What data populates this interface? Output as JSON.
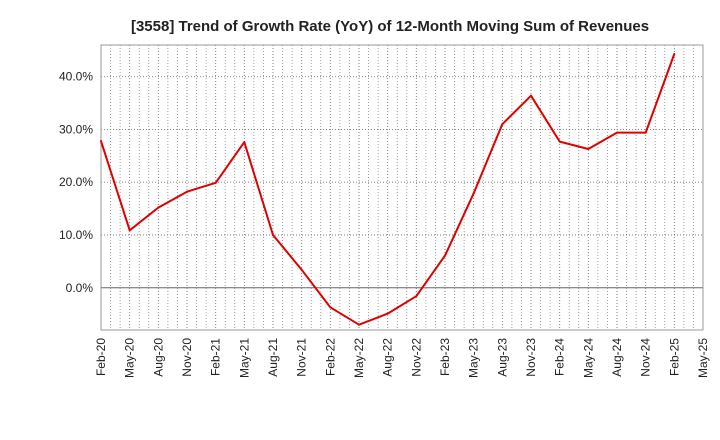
{
  "chart_data": {
    "type": "line",
    "title": "[3558]  Trend of Growth Rate (YoY) of 12-Month Moving Sum of Revenues",
    "xlabel": "",
    "ylabel": "",
    "x_tick_labels": [
      "Feb-20",
      "May-20",
      "Aug-20",
      "Nov-20",
      "Feb-21",
      "May-21",
      "Aug-21",
      "Nov-21",
      "Feb-22",
      "May-22",
      "Aug-22",
      "Nov-22",
      "Feb-23",
      "May-23",
      "Aug-23",
      "Nov-23",
      "Feb-24",
      "May-24",
      "Aug-24",
      "Nov-24",
      "Feb-25",
      "May-25"
    ],
    "y_ticks": [
      0,
      10,
      20,
      30,
      40
    ],
    "y_tick_labels": [
      "0.0%",
      "10.0%",
      "20.0%",
      "30.0%",
      "40.0%"
    ],
    "ylim": [
      -8,
      46
    ],
    "grid": true,
    "line_color": "#e00000",
    "series": [
      {
        "values": [
          27.8,
          10.9,
          15.2,
          18.2,
          19.9,
          27.6,
          10.0,
          3.4,
          -3.7,
          -7.0,
          -4.9,
          -1.6,
          6.1,
          17.9,
          31.0,
          36.4,
          27.7,
          26.3,
          29.4,
          29.4,
          44.3
        ]
      }
    ]
  }
}
